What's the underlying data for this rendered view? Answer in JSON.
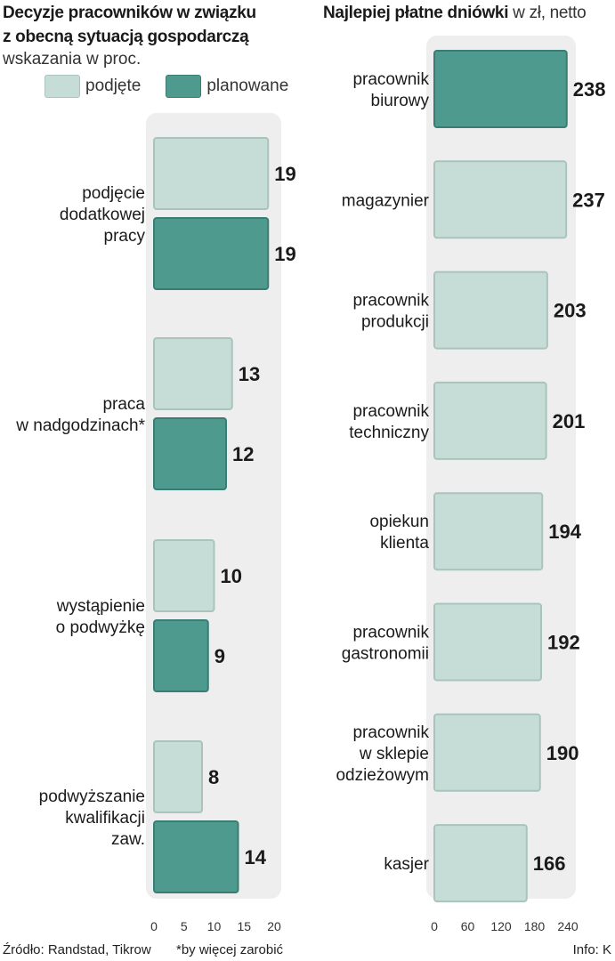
{
  "chart_data": [
    {
      "type": "bar",
      "orientation": "horizontal",
      "title_line1": "Decyzje pracowników w związku",
      "title_line2": "z obecną sytuacją gospodarczą",
      "subtitle": "wskazania w proc.",
      "categories": [
        [
          "podjęcie",
          "dodatkowej",
          "pracy"
        ],
        [
          "praca",
          "w nadgodzinach*"
        ],
        [
          "wystąpienie",
          "o podwyżkę"
        ],
        [
          "podwyższanie",
          "kwalifikacji",
          "zaw."
        ]
      ],
      "series": [
        {
          "name": "podjęte",
          "values": [
            19,
            13,
            10,
            8
          ]
        },
        {
          "name": "planowane",
          "values": [
            19,
            12,
            9,
            14
          ]
        }
      ],
      "xlim": [
        0,
        20
      ],
      "xticks": [
        "0",
        "5",
        "10",
        "15",
        "20"
      ],
      "legend_position": "top"
    },
    {
      "type": "bar",
      "orientation": "horizontal",
      "title": "Najlepiej płatne dniówki",
      "title_unit": " w zł, netto",
      "categories": [
        [
          "pracownik",
          "biurowy"
        ],
        [
          "magazynier"
        ],
        [
          "pracownik",
          "produkcji"
        ],
        [
          "pracownik",
          "techniczny"
        ],
        [
          "opiekun",
          "klienta"
        ],
        [
          "pracownik",
          "gastronomii"
        ],
        [
          "pracownik",
          "w sklepie",
          "odzieżowym"
        ],
        [
          "kasjer"
        ]
      ],
      "values": [
        238,
        237,
        203,
        201,
        194,
        192,
        190,
        166
      ],
      "highlight_index": 0,
      "xlim": [
        0,
        240
      ],
      "xticks": [
        "0",
        "60",
        "120",
        "180",
        "240"
      ]
    }
  ],
  "colors": {
    "light_fill": "#c5ddd6",
    "light_stroke": "#a9c4bc",
    "dark_fill": "#4f9a8f",
    "dark_stroke": "#3a7d73",
    "panel_bg": "#eeeeee"
  },
  "footer": {
    "source": "Źródło: Randstad, Tikrow",
    "note": "*by więcej zarobić",
    "credit": "Info: K"
  }
}
